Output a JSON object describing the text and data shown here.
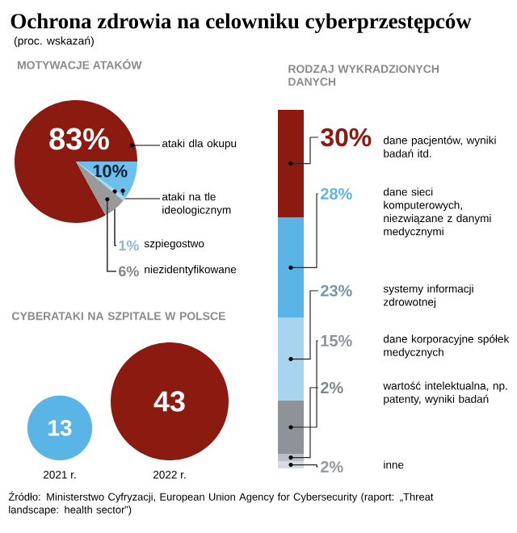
{
  "chart_data": [
    {
      "type": "pie",
      "title": "Ochrona zdrowia na celowniku cyberprzestępców",
      "subtitle": "(proc. wskazań)",
      "annotations": [
        "MOTYWACJE ATAKÓW"
      ],
      "categories": [
        "ataki dla okupu",
        "ataki na tle ideologicznym",
        "szpiegostwo",
        "niezidentyfikowane"
      ],
      "values": [
        83,
        10,
        1,
        6
      ],
      "value_labels": [
        "83%",
        "10%",
        "1%",
        "6%"
      ],
      "colors": [
        "#8b1a10",
        "#6cc0ec",
        "#a8d8f2",
        "#9a9a9a"
      ]
    },
    {
      "type": "other",
      "title": "CYBERATAKI NA SZPITALE W POLSCE",
      "categories": [
        "2021 r.",
        "2022 r."
      ],
      "values": [
        13,
        43
      ],
      "data_labels": true,
      "colors": [
        "#5ab4e5",
        "#8b1a10"
      ]
    },
    {
      "type": "bar",
      "stacked": true,
      "title": "RODZAJ WYKRADZIONYCH DANYCH",
      "categories": [
        null
      ],
      "annotations": [
        "Źródło: Ministerstwo Cyfryzacji, European Union Agency for Cybersecurity (raport: „Threat landscape: health sector”)"
      ],
      "series": [
        {
          "name": "inne",
          "color": "#d5dbe0",
          "values": [
            2
          ],
          "value_labels": [
            "2%"
          ]
        },
        {
          "name": "wartość intelektualna, np. patenty, wyniki badań",
          "color": "#b9c0c6",
          "values": [
            2
          ],
          "value_labels": [
            "2%"
          ]
        },
        {
          "name": "dane korporacyjne spółek medycznych",
          "color": "#8e9398",
          "values": [
            15
          ],
          "value_labels": [
            "15%"
          ]
        },
        {
          "name": "systemy informacji zdrowotnej",
          "color": "#a8d4ef",
          "values": [
            23
          ],
          "value_labels": [
            "23%"
          ]
        },
        {
          "name": "dane sieci komputerowych, niezwiązane z danymi medycznymi",
          "color": "#5ab4e5",
          "values": [
            28
          ],
          "value_labels": [
            "28%"
          ]
        },
        {
          "name": "dane pacjentów, wyniki badań itd.",
          "color": "#8b1a10",
          "values": [
            30
          ],
          "value_labels": [
            "30%"
          ]
        }
      ]
    }
  ]
}
